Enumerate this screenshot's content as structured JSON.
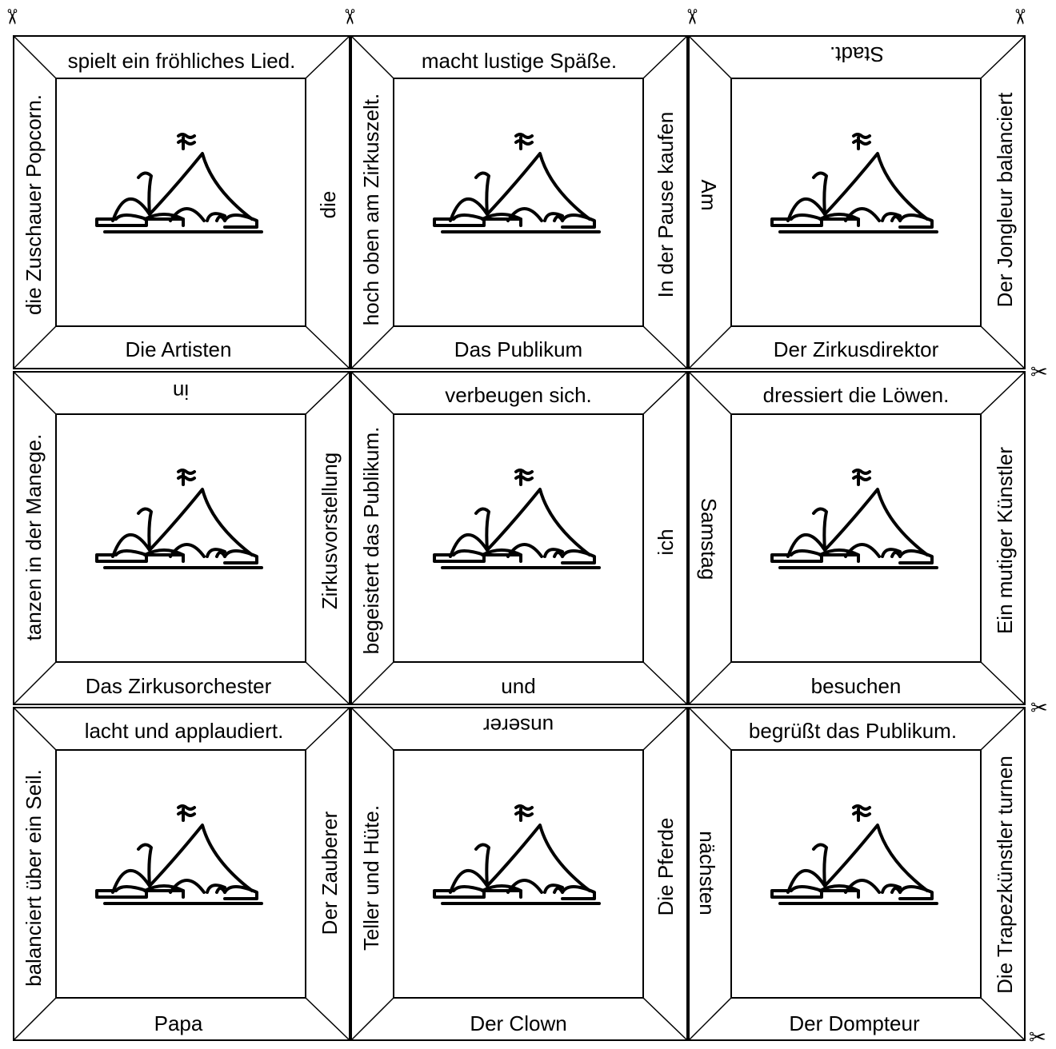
{
  "icons": {
    "cut_marker": "scissors-icon",
    "card_image": "circus-tent-icon"
  },
  "cards": [
    {
      "top": "spielt ein fröhliches Lied.",
      "bottom": "Die Artisten",
      "left": "die Zuschauer Popcorn.",
      "right": "die"
    },
    {
      "top": "macht lustige Späße.",
      "bottom": "Das Publikum",
      "left": "hoch oben am Zirkuszelt.",
      "right": "In der Pause kaufen"
    },
    {
      "top": "Stadt.",
      "bottom": "Der Zirkusdirektor",
      "left": "Am",
      "right": "Der Jongleur balanciert"
    },
    {
      "top": "in",
      "bottom": "Das Zirkusorchester",
      "left": "tanzen in der Manege.",
      "right": "Zirkusvorstellung"
    },
    {
      "top": "verbeugen sich.",
      "bottom": "und",
      "left": "begeistert das Publikum.",
      "right": "ich"
    },
    {
      "top": "dressiert die Löwen.",
      "bottom": "besuchen",
      "left": "Samstag",
      "right": "Ein mutiger Künstler"
    },
    {
      "top": "lacht und applaudiert.",
      "bottom": "Papa",
      "left": "balanciert über ein Seil.",
      "right": "Der Zauberer"
    },
    {
      "top": "unserer",
      "bottom": "Der Clown",
      "left": "Teller und Hüte.",
      "right": "Die Pferde"
    },
    {
      "top": "begrüßt das Publikum.",
      "bottom": "Der Dompteur",
      "left": "nächsten",
      "right": "Die Trapezkünstler turnen"
    }
  ]
}
